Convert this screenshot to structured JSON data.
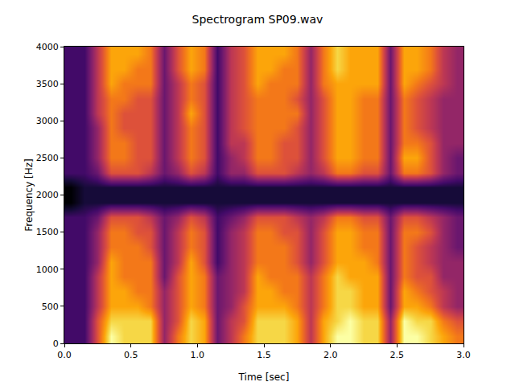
{
  "chart_data": {
    "type": "heatmap",
    "title": "Spectrogram SP09.wav",
    "x_label": "Time [sec]",
    "y_label": "Frequency [Hz]",
    "color": "inferno",
    "xlim": [
      0,
      3.0
    ],
    "ylim": [
      0,
      4000
    ],
    "xticks": [
      {
        "value": 0,
        "label": "0.0"
      },
      0.5,
      {
        "value": 1,
        "label": "1.0"
      },
      1.5,
      {
        "value": 2,
        "label": "2.0"
      },
      2.5,
      {
        "value": 3,
        "label": "3.0"
      }
    ],
    "yticks": [
      0,
      500,
      1000,
      1500,
      2000,
      2500,
      3000,
      3500,
      4000
    ],
    "x": [
      0.05,
      0.15,
      0.25,
      0.35,
      0.45,
      0.55,
      0.65,
      0.75,
      0.85,
      0.95,
      1.05,
      1.15,
      1.25,
      1.35,
      1.45,
      1.55,
      1.65,
      1.75,
      1.85,
      1.95,
      2.05,
      2.15,
      2.25,
      2.35,
      2.45,
      2.55,
      2.65,
      2.75,
      2.85,
      2.95
    ],
    "y": [
      100,
      300,
      500,
      700,
      900,
      1100,
      1300,
      1500,
      1700,
      1900,
      2100,
      2300,
      2500,
      2700,
      2900,
      3100,
      3300,
      3500,
      3700,
      3900
    ],
    "z": [
      [
        2,
        2,
        6,
        10,
        9,
        9,
        9,
        4,
        7,
        9,
        8,
        3,
        5,
        7,
        9,
        9,
        9,
        8,
        5,
        8,
        10,
        10,
        9,
        9,
        4,
        10,
        10,
        9,
        8,
        7
      ],
      [
        2,
        2,
        6,
        9,
        9,
        9,
        9,
        4,
        6,
        9,
        8,
        3,
        5,
        6,
        9,
        9,
        9,
        8,
        5,
        8,
        9,
        10,
        9,
        9,
        4,
        10,
        9,
        9,
        7,
        6
      ],
      [
        2,
        2,
        5,
        8,
        8,
        8,
        7,
        4,
        6,
        8,
        7,
        3,
        4,
        6,
        8,
        8,
        8,
        7,
        5,
        7,
        9,
        9,
        8,
        8,
        3,
        8,
        8,
        7,
        5,
        4
      ],
      [
        2,
        2,
        5,
        8,
        8,
        7,
        7,
        4,
        6,
        8,
        7,
        3,
        4,
        5,
        8,
        8,
        7,
        7,
        5,
        7,
        9,
        9,
        8,
        8,
        3,
        8,
        7,
        6,
        5,
        4
      ],
      [
        2,
        2,
        5,
        8,
        7,
        7,
        7,
        3,
        6,
        8,
        7,
        3,
        4,
        5,
        8,
        7,
        7,
        7,
        5,
        7,
        9,
        8,
        8,
        8,
        3,
        7,
        6,
        6,
        4,
        4
      ],
      [
        2,
        2,
        4,
        8,
        7,
        7,
        7,
        3,
        5,
        8,
        6,
        2,
        4,
        5,
        7,
        7,
        7,
        6,
        4,
        6,
        8,
        8,
        8,
        7,
        3,
        7,
        6,
        5,
        4,
        4
      ],
      [
        2,
        2,
        4,
        7,
        7,
        7,
        6,
        3,
        5,
        7,
        6,
        2,
        4,
        5,
        7,
        7,
        7,
        6,
        4,
        6,
        8,
        8,
        7,
        7,
        3,
        7,
        6,
        5,
        4,
        3
      ],
      [
        2,
        2,
        4,
        7,
        7,
        6,
        6,
        3,
        5,
        7,
        6,
        2,
        4,
        5,
        7,
        7,
        6,
        6,
        4,
        6,
        8,
        8,
        7,
        7,
        3,
        7,
        7,
        6,
        4,
        3
      ],
      [
        2,
        2,
        3,
        6,
        6,
        6,
        5,
        3,
        4,
        6,
        5,
        2,
        3,
        4,
        6,
        6,
        6,
        5,
        4,
        5,
        7,
        7,
        6,
        6,
        3,
        6,
        6,
        5,
        4,
        3
      ],
      [
        0,
        1,
        1,
        1,
        1,
        1,
        1,
        1,
        1,
        1,
        1,
        1,
        1,
        1,
        1,
        1,
        1,
        1,
        1,
        1,
        1,
        1,
        1,
        1,
        1,
        1,
        1,
        1,
        1,
        1
      ],
      [
        0,
        1,
        1,
        1,
        1,
        1,
        1,
        1,
        1,
        1,
        1,
        1,
        1,
        1,
        1,
        1,
        1,
        1,
        1,
        1,
        1,
        1,
        1,
        1,
        1,
        1,
        1,
        1,
        1,
        1
      ],
      [
        2,
        2,
        3,
        6,
        6,
        6,
        5,
        3,
        4,
        6,
        5,
        2,
        4,
        4,
        6,
        6,
        6,
        5,
        4,
        5,
        7,
        7,
        6,
        6,
        3,
        7,
        7,
        6,
        4,
        3
      ],
      [
        2,
        2,
        4,
        7,
        7,
        6,
        6,
        3,
        5,
        7,
        6,
        2,
        4,
        5,
        7,
        7,
        6,
        6,
        4,
        6,
        8,
        8,
        7,
        7,
        3,
        8,
        8,
        6,
        4,
        3
      ],
      [
        2,
        2,
        4,
        7,
        7,
        6,
        6,
        3,
        5,
        7,
        6,
        2,
        5,
        5,
        7,
        7,
        6,
        6,
        4,
        6,
        8,
        8,
        7,
        7,
        3,
        7,
        7,
        6,
        4,
        4
      ],
      [
        2,
        2,
        4,
        7,
        6,
        6,
        6,
        3,
        5,
        7,
        6,
        2,
        5,
        6,
        7,
        7,
        7,
        6,
        4,
        6,
        8,
        8,
        7,
        7,
        3,
        7,
        6,
        5,
        4,
        4
      ],
      [
        2,
        2,
        5,
        7,
        6,
        6,
        6,
        3,
        5,
        8,
        6,
        2,
        5,
        6,
        7,
        7,
        7,
        7,
        4,
        6,
        8,
        8,
        7,
        7,
        3,
        7,
        6,
        5,
        4,
        4
      ],
      [
        2,
        2,
        5,
        7,
        7,
        6,
        6,
        3,
        5,
        7,
        6,
        2,
        5,
        6,
        7,
        7,
        7,
        6,
        4,
        6,
        8,
        8,
        7,
        7,
        3,
        7,
        6,
        5,
        4,
        4
      ],
      [
        2,
        2,
        5,
        8,
        7,
        7,
        7,
        3,
        5,
        7,
        6,
        2,
        5,
        6,
        8,
        7,
        7,
        7,
        4,
        7,
        8,
        8,
        8,
        8,
        3,
        8,
        7,
        6,
        5,
        4
      ],
      [
        2,
        2,
        5,
        8,
        8,
        7,
        7,
        3,
        6,
        8,
        7,
        2,
        5,
        6,
        8,
        8,
        7,
        7,
        4,
        7,
        9,
        8,
        8,
        8,
        3,
        8,
        8,
        7,
        5,
        4
      ],
      [
        2,
        2,
        5,
        8,
        8,
        8,
        7,
        3,
        6,
        8,
        7,
        2,
        5,
        6,
        8,
        8,
        8,
        7,
        4,
        7,
        9,
        8,
        8,
        8,
        3,
        8,
        8,
        7,
        5,
        4
      ]
    ]
  }
}
